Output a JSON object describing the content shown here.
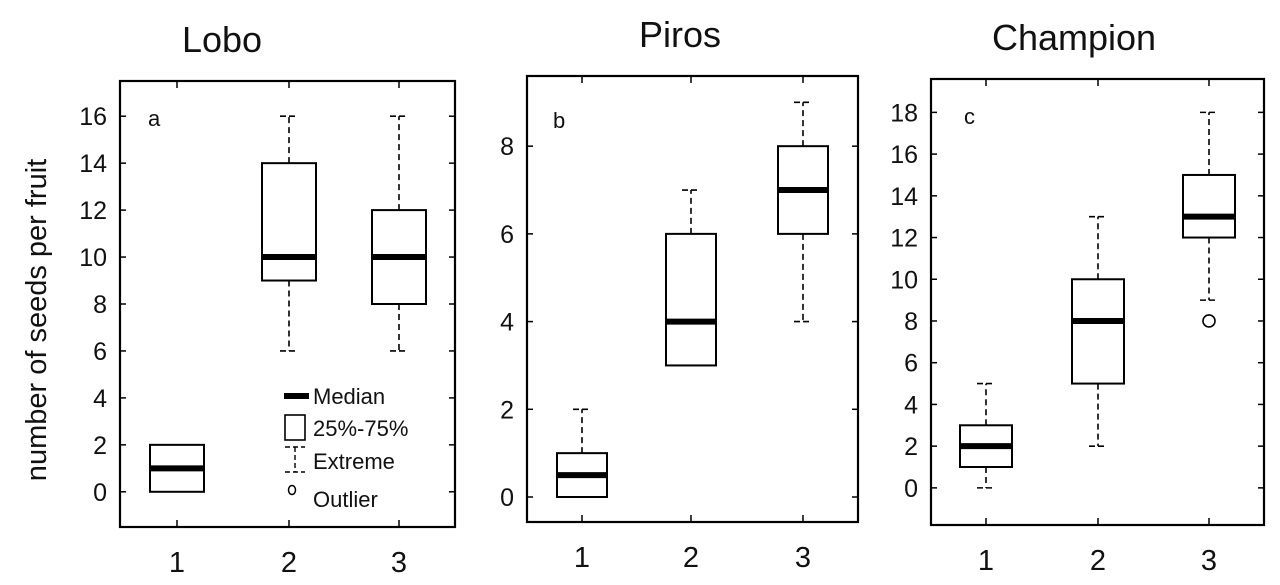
{
  "figure": {
    "ylabel": "number of seeds per fruit",
    "colors": {
      "line": "#000000",
      "background": "#ffffff",
      "text": "#111111"
    }
  },
  "legend": {
    "items": [
      {
        "symbol": "median-line",
        "label": "Median"
      },
      {
        "symbol": "box",
        "label": "25%-75%"
      },
      {
        "symbol": "whisker",
        "label": "Extreme"
      },
      {
        "symbol": "circle",
        "label": "Outlier"
      }
    ]
  },
  "chart_data": [
    {
      "type": "box",
      "title": "Lobo",
      "panel_label": "a",
      "xlabel": "",
      "ylabel": "number of seeds per fruit",
      "categories": [
        "1",
        "2",
        "3"
      ],
      "yticks": [
        0,
        2,
        4,
        6,
        8,
        10,
        12,
        14,
        16
      ],
      "ylim": [
        -1.5,
        17.5
      ],
      "grid": false,
      "legend_position": "lower right",
      "boxes": [
        {
          "category": "1",
          "min": null,
          "q1": 0,
          "median": 1,
          "q3": 2,
          "max": null,
          "outliers": []
        },
        {
          "category": "2",
          "min": 6,
          "q1": 9,
          "median": 10,
          "q3": 14,
          "max": 16,
          "outliers": []
        },
        {
          "category": "3",
          "min": 6,
          "q1": 8,
          "median": 10,
          "q3": 12,
          "max": 16,
          "outliers": []
        }
      ]
    },
    {
      "type": "box",
      "title": "Piros",
      "panel_label": "b",
      "xlabel": "",
      "ylabel": "",
      "categories": [
        "1",
        "2",
        "3"
      ],
      "yticks": [
        0,
        2,
        4,
        6,
        8
      ],
      "ylim": [
        -0.57,
        9.6
      ],
      "grid": false,
      "boxes": [
        {
          "category": "1",
          "min": null,
          "q1": 0,
          "median": 0.5,
          "q3": 1,
          "max": 2,
          "outliers": []
        },
        {
          "category": "2",
          "min": null,
          "q1": 3,
          "median": 4,
          "q3": 6,
          "max": 7,
          "outliers": []
        },
        {
          "category": "3",
          "min": 4,
          "q1": 6,
          "median": 7,
          "q3": 8,
          "max": 9,
          "outliers": []
        }
      ]
    },
    {
      "type": "box",
      "title": "Champion",
      "panel_label": "c",
      "xlabel": "",
      "ylabel": "",
      "categories": [
        "1",
        "2",
        "3"
      ],
      "yticks": [
        0,
        2,
        4,
        6,
        8,
        10,
        12,
        14,
        16,
        18
      ],
      "ylim": [
        -1.78,
        19.6
      ],
      "grid": false,
      "boxes": [
        {
          "category": "1",
          "min": 0,
          "q1": 1,
          "median": 2,
          "q3": 3,
          "max": 5,
          "outliers": []
        },
        {
          "category": "2",
          "min": 2,
          "q1": 5,
          "median": 8,
          "q3": 10,
          "max": 13,
          "outliers": []
        },
        {
          "category": "3",
          "min": 9,
          "q1": 12,
          "median": 13,
          "q3": 15,
          "max": 18,
          "outliers": [
            8
          ]
        }
      ]
    }
  ]
}
